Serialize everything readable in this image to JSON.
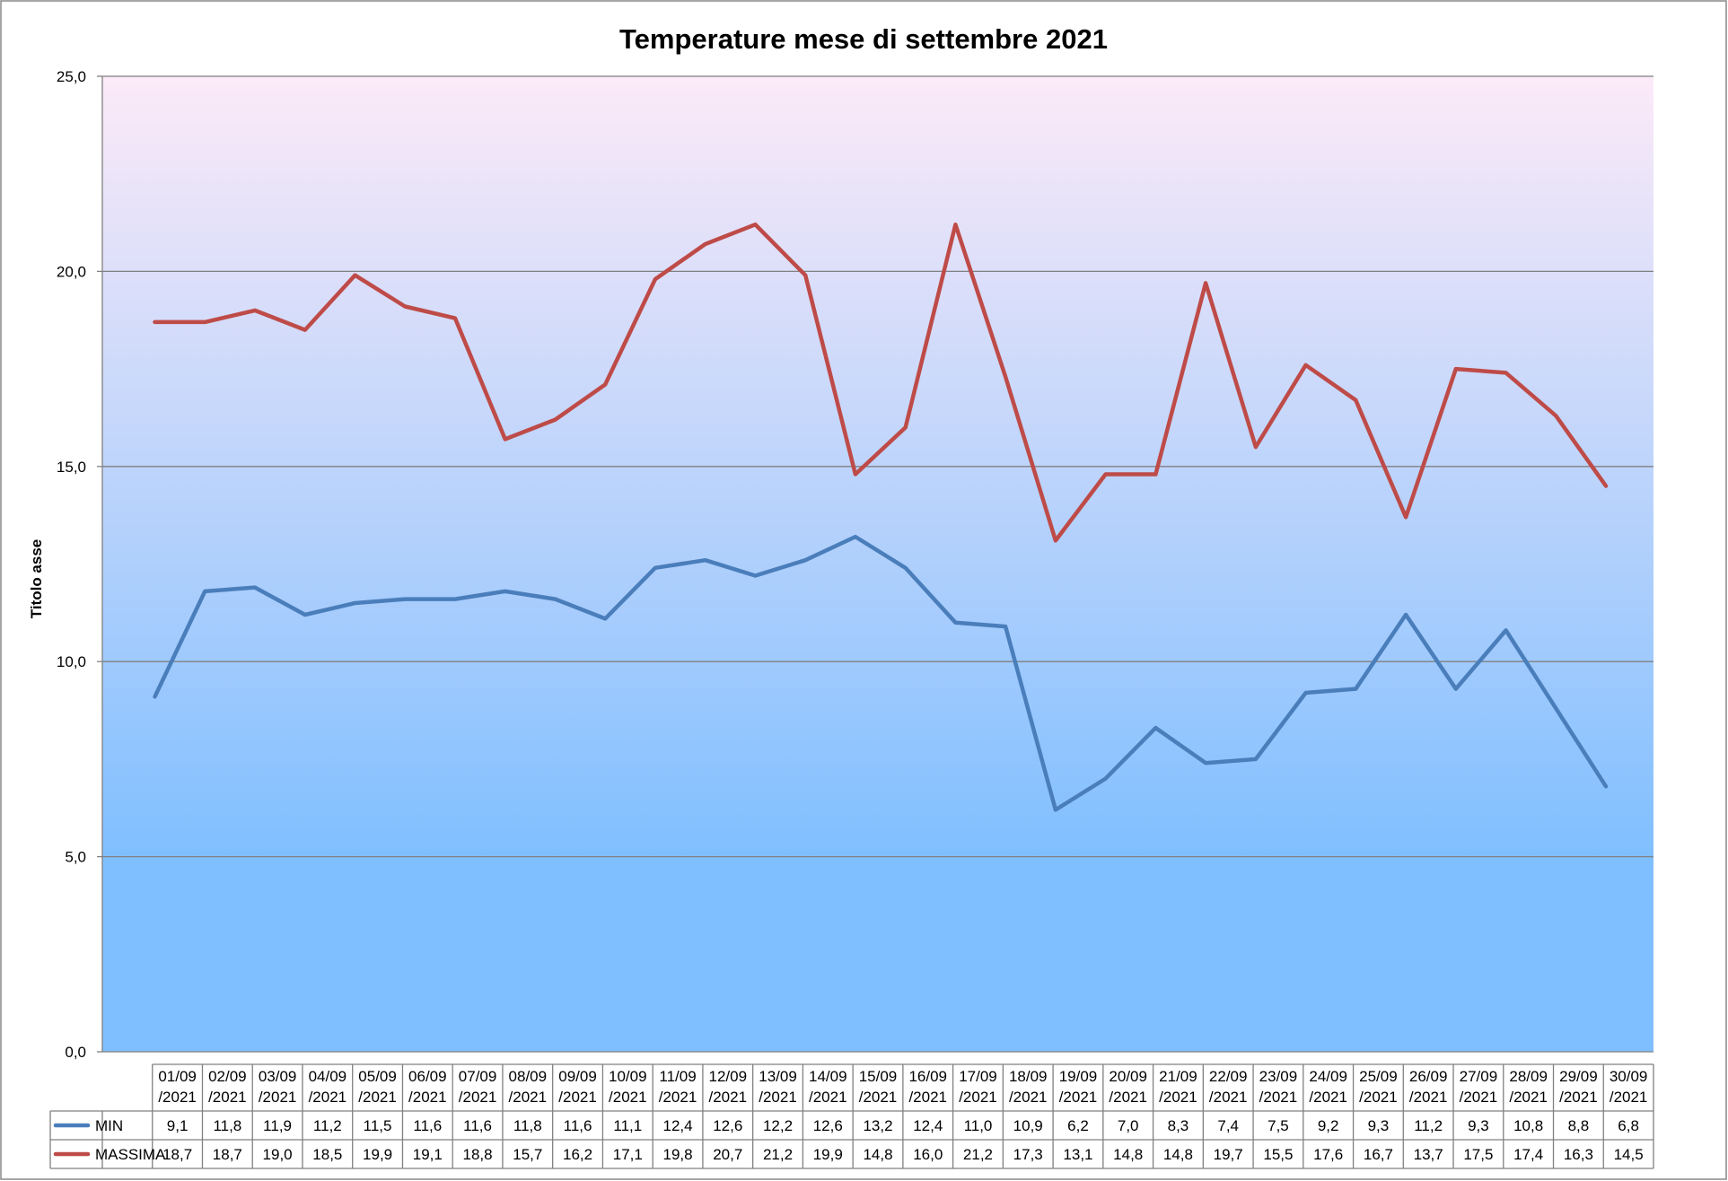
{
  "chart_data": {
    "type": "line",
    "title": "Temperature mese di settembre 2021",
    "ylabel": "Titolo asse",
    "xlabel": "",
    "ylim": [
      0,
      25
    ],
    "yticks": [
      "0,0",
      "5,0",
      "10,0",
      "15,0",
      "20,0",
      "25,0"
    ],
    "grid": true,
    "legend": "data-table-left",
    "categories": [
      "01/09/2021",
      "02/09/2021",
      "03/09/2021",
      "04/09/2021",
      "05/09/2021",
      "06/09/2021",
      "07/09/2021",
      "08/09/2021",
      "09/09/2021",
      "10/09/2021",
      "11/09/2021",
      "12/09/2021",
      "13/09/2021",
      "14/09/2021",
      "15/09/2021",
      "16/09/2021",
      "17/09/2021",
      "18/09/2021",
      "19/09/2021",
      "20/09/2021",
      "21/09/2021",
      "22/09/2021",
      "23/09/2021",
      "24/09/2021",
      "25/09/2021",
      "26/09/2021",
      "27/09/2021",
      "28/09/2021",
      "29/09/2021",
      "30/09/2021"
    ],
    "series": [
      {
        "name": "MIN",
        "color": "#4A7EBB",
        "values": [
          9.1,
          11.8,
          11.9,
          11.2,
          11.5,
          11.6,
          11.6,
          11.8,
          11.6,
          11.1,
          12.4,
          12.6,
          12.2,
          12.6,
          13.2,
          12.4,
          11.0,
          10.9,
          6.2,
          7.0,
          8.3,
          7.4,
          7.5,
          9.2,
          9.3,
          11.2,
          9.3,
          10.8,
          8.8,
          6.8
        ]
      },
      {
        "name": "MASSIMA",
        "color": "#BE4B48",
        "values": [
          18.7,
          18.7,
          19.0,
          18.5,
          19.9,
          19.1,
          18.8,
          15.7,
          16.2,
          17.1,
          19.8,
          20.7,
          21.2,
          19.9,
          14.8,
          16.0,
          21.2,
          17.3,
          13.1,
          14.8,
          14.8,
          19.7,
          15.5,
          17.6,
          16.7,
          13.7,
          17.5,
          17.4,
          16.3,
          14.5
        ]
      }
    ],
    "table_min_labels": [
      "9,1",
      "11,8",
      "11,9",
      "11,2",
      "11,5",
      "11,6",
      "11,6",
      "11,8",
      "11,6",
      "11,1",
      "12,4",
      "12,6",
      "12,2",
      "12,6",
      "13,2",
      "12,4",
      "11,0",
      "10,9",
      "6,2",
      "7,0",
      "8,3",
      "7,4",
      "7,5",
      "9,2",
      "9,3",
      "11,2",
      "9,3",
      "10,8",
      "8,8",
      "6,8"
    ],
    "table_max_labels": [
      "18,7",
      "18,7",
      "19,0",
      "18,5",
      "19,9",
      "19,1",
      "18,8",
      "15,7",
      "16,2",
      "17,1",
      "19,8",
      "20,7",
      "21,2",
      "19,9",
      "14,8",
      "16,0",
      "21,2",
      "17,3",
      "13,1",
      "14,8",
      "14,8",
      "19,7",
      "15,5",
      "17,6",
      "16,7",
      "13,7",
      "17,5",
      "17,4",
      "16,3",
      "14,5"
    ],
    "plot_gradient": [
      "#FCEAF8",
      "#80BFFF"
    ]
  }
}
